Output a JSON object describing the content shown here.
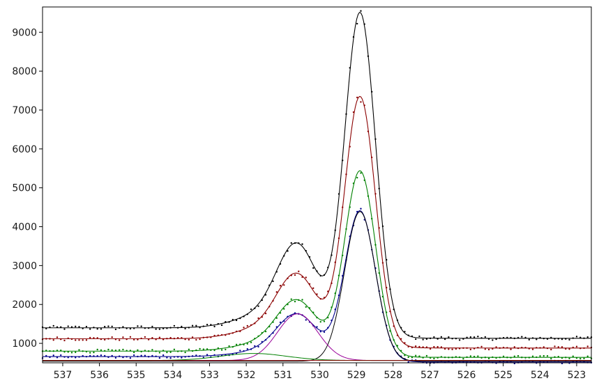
{
  "chart_data": {
    "type": "line",
    "title": "",
    "xlabel": "",
    "ylabel": "",
    "x_reversed": true,
    "xlim": [
      522.6,
      537.55
    ],
    "ylim": [
      500,
      9650
    ],
    "x_ticks": [
      537,
      536,
      535,
      534,
      533,
      532,
      531,
      530,
      529,
      528,
      527,
      526,
      525,
      524,
      523
    ],
    "y_ticks": [
      1000,
      2000,
      3000,
      4000,
      5000,
      6000,
      7000,
      8000,
      9000
    ],
    "grid": false,
    "legend": "none",
    "series": [
      {
        "color": "#000000",
        "base_high_be": 1400,
        "base_low_be": 1130,
        "peaks": [
          {
            "center": 528.9,
            "height": 8300,
            "sigma": 0.42
          },
          {
            "center": 530.6,
            "height": 2050,
            "sigma": 0.55
          },
          {
            "center": 531.5,
            "height": 320,
            "sigma": 0.8
          }
        ]
      },
      {
        "color": "#8b0000",
        "base_high_be": 1120,
        "base_low_be": 880,
        "peaks": [
          {
            "center": 528.9,
            "height": 6400,
            "sigma": 0.42
          },
          {
            "center": 530.6,
            "height": 1580,
            "sigma": 0.55
          },
          {
            "center": 531.5,
            "height": 260,
            "sigma": 0.8
          }
        ]
      },
      {
        "color": "#008000",
        "base_high_be": 800,
        "base_low_be": 640,
        "peaks": [
          {
            "center": 528.9,
            "height": 4750,
            "sigma": 0.42
          },
          {
            "center": 530.6,
            "height": 1240,
            "sigma": 0.55
          },
          {
            "center": 531.5,
            "height": 200,
            "sigma": 0.8
          }
        ]
      },
      {
        "color": "#00008b",
        "base_high_be": 660,
        "base_low_be": 520,
        "peaks": [
          {
            "center": 528.9,
            "height": 3850,
            "sigma": 0.42
          },
          {
            "center": 530.6,
            "height": 1050,
            "sigma": 0.55
          },
          {
            "center": 531.5,
            "height": 140,
            "sigma": 0.8
          }
        ]
      }
    ],
    "components": [
      {
        "color": "#000000",
        "center": 528.9,
        "height": 3850,
        "sigma": 0.42,
        "base": 540
      },
      {
        "color": "#990099",
        "center": 530.6,
        "height": 1200,
        "sigma": 0.55,
        "base": 560
      },
      {
        "color": "#008000",
        "center": 531.8,
        "height": 180,
        "sigma": 0.9,
        "base": 560
      },
      {
        "color": "#8b0000",
        "center": 530.0,
        "height": 0,
        "sigma": 1.0,
        "base": 560
      }
    ]
  }
}
